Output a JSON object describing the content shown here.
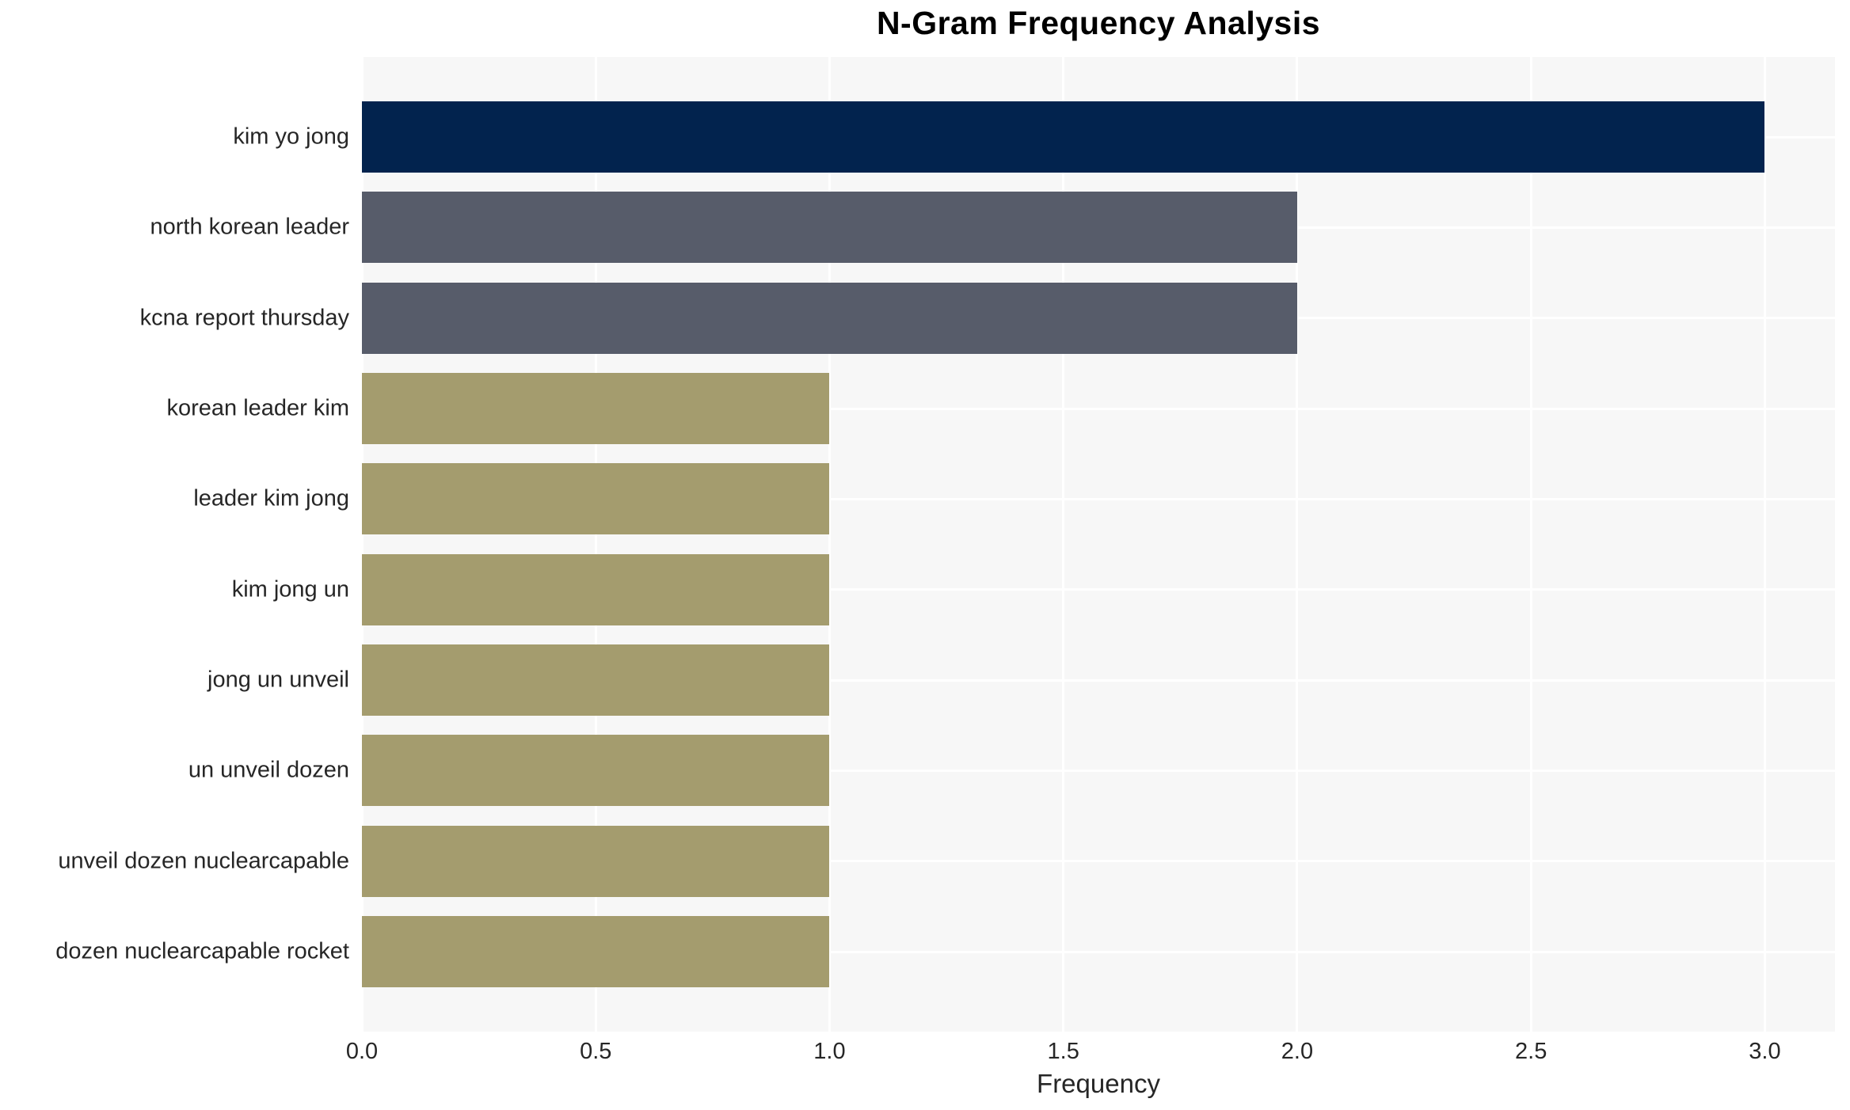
{
  "chart_data": {
    "type": "bar",
    "orientation": "horizontal",
    "title": "N-Gram Frequency Analysis",
    "xlabel": "Frequency",
    "ylabel": "",
    "categories": [
      "kim yo jong",
      "north korean leader",
      "kcna report thursday",
      "korean leader kim",
      "leader kim jong",
      "kim jong un",
      "jong un unveil",
      "un unveil dozen",
      "unveil dozen nuclearcapable",
      "dozen nuclearcapable rocket"
    ],
    "values": [
      3,
      2,
      2,
      1,
      1,
      1,
      1,
      1,
      1,
      1
    ],
    "x_ticks": [
      "0.0",
      "0.5",
      "1.0",
      "1.5",
      "2.0",
      "2.5",
      "3.0"
    ],
    "xlim": [
      0,
      3.15
    ],
    "grid": true,
    "legend": false,
    "bar_colors": [
      "#02234e",
      "#575c6a",
      "#575c6a",
      "#a49c6e",
      "#a49c6e",
      "#a49c6e",
      "#a49c6e",
      "#a49c6e",
      "#a49c6e",
      "#a49c6e"
    ],
    "colors": {
      "plot_background": "#f7f7f7",
      "figure_background": "#ffffff",
      "gridline": "#ffffff",
      "text": "#262626",
      "title_text": "#000000"
    }
  }
}
